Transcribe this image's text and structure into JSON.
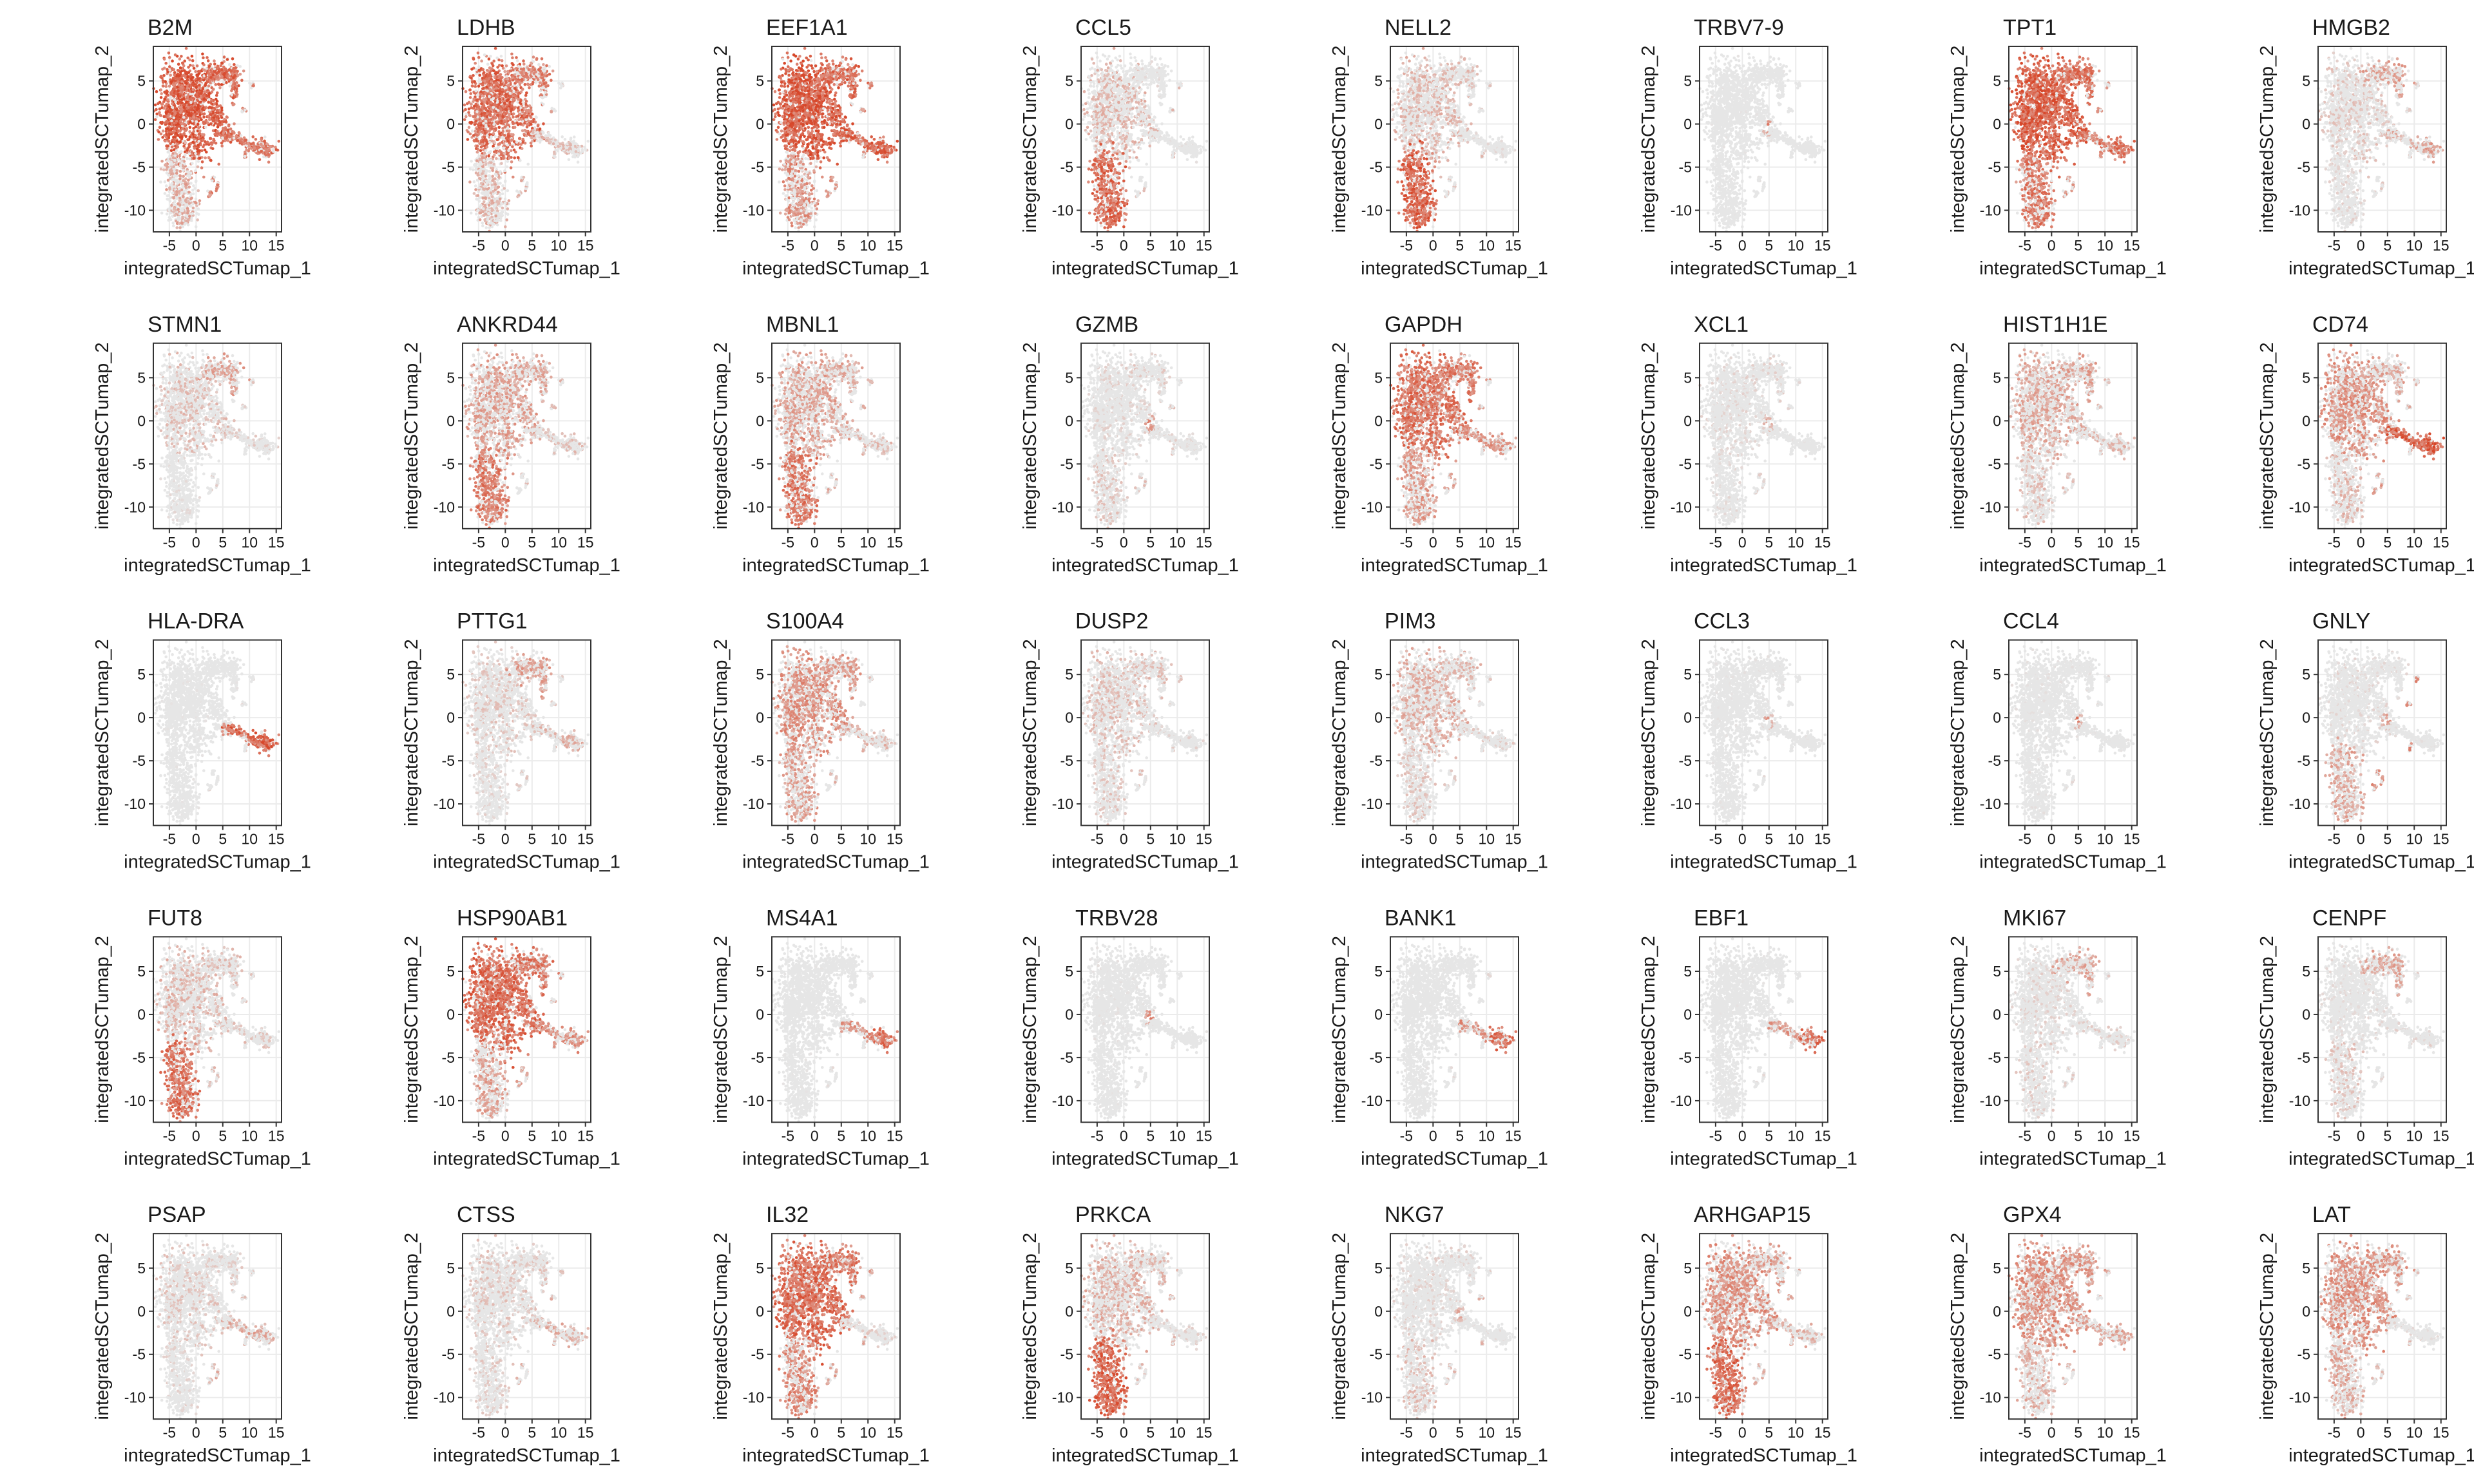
{
  "chart_data": {
    "type": "scatter",
    "layout": "small-multiples grid, 5 rows x 8 columns",
    "xlabel": "integratedSCTumap_1",
    "ylabel": "integratedSCTumap_2",
    "xlim": [
      -8,
      16
    ],
    "ylim": [
      -12.5,
      9
    ],
    "xticks": [
      -5,
      0,
      5,
      10,
      15
    ],
    "yticks": [
      -10,
      -5,
      0,
      5
    ],
    "xtick_labels": [
      "-5",
      "0",
      "5",
      "10",
      "15"
    ],
    "ytick_labels": [
      "-10",
      "-5",
      "0",
      "5"
    ],
    "grid": true,
    "legend": "none",
    "colors": {
      "low": "#e6e6e6",
      "high": "#d7472a",
      "frame": "#333333",
      "grid": "#ebebeb"
    },
    "note_regions": "expression intensity per region on a 0-1 scale",
    "panels": [
      {
        "gene": "B2M",
        "expression": {
          "core": 0.95,
          "upper_arm": 0.85,
          "lower_lobe": 0.45,
          "tail": 0.8,
          "tail_tip": 0.8,
          "islets": 0.7
        }
      },
      {
        "gene": "LDHB",
        "expression": {
          "core": 0.85,
          "upper_arm": 0.7,
          "lower_lobe": 0.4,
          "tail": 0.35,
          "tail_tip": 0.35,
          "islets": 0.4
        }
      },
      {
        "gene": "EEF1A1",
        "expression": {
          "core": 0.95,
          "upper_arm": 0.85,
          "lower_lobe": 0.6,
          "tail": 0.85,
          "tail_tip": 0.9,
          "islets": 0.6
        }
      },
      {
        "gene": "CCL5",
        "expression": {
          "core": 0.35,
          "upper_arm": 0.1,
          "lower_lobe": 0.85,
          "tail": 0.05,
          "tail_tip": 0.05,
          "islets": 0.3
        }
      },
      {
        "gene": "NELL2",
        "expression": {
          "core": 0.35,
          "upper_arm": 0.3,
          "lower_lobe": 0.9,
          "tail": 0.1,
          "tail_tip": 0.1,
          "islets": 0.3
        }
      },
      {
        "gene": "TRBV7-9",
        "expression": {
          "core": 0.03,
          "upper_arm": 0.02,
          "lower_lobe": 0.02,
          "tail": 0.02,
          "tail_tip": 0.02,
          "islets": 0.05,
          "hotspot": 0.95
        }
      },
      {
        "gene": "TPT1",
        "expression": {
          "core": 0.95,
          "upper_arm": 0.8,
          "lower_lobe": 0.75,
          "tail": 0.75,
          "tail_tip": 0.8,
          "islets": 0.6
        }
      },
      {
        "gene": "HMGB2",
        "expression": {
          "core": 0.25,
          "upper_arm": 0.5,
          "lower_lobe": 0.15,
          "tail": 0.4,
          "tail_tip": 0.5,
          "islets": 0.25
        }
      },
      {
        "gene": "STMN1",
        "expression": {
          "core": 0.3,
          "upper_arm": 0.5,
          "lower_lobe": 0.1,
          "tail": 0.2,
          "tail_tip": 0.2,
          "islets": 0.2
        }
      },
      {
        "gene": "ANKRD44",
        "expression": {
          "core": 0.5,
          "upper_arm": 0.45,
          "lower_lobe": 0.75,
          "tail": 0.3,
          "tail_tip": 0.3,
          "islets": 0.35
        }
      },
      {
        "gene": "MBNL1",
        "expression": {
          "core": 0.5,
          "upper_arm": 0.45,
          "lower_lobe": 0.75,
          "tail": 0.35,
          "tail_tip": 0.35,
          "islets": 0.4
        }
      },
      {
        "gene": "GZMB",
        "expression": {
          "core": 0.15,
          "upper_arm": 0.2,
          "lower_lobe": 0.25,
          "tail": 0.15,
          "tail_tip": 0.1,
          "islets": 0.25,
          "hotspot": 0.9
        }
      },
      {
        "gene": "GAPDH",
        "expression": {
          "core": 0.8,
          "upper_arm": 0.75,
          "lower_lobe": 0.55,
          "tail": 0.6,
          "tail_tip": 0.55,
          "islets": 0.5
        }
      },
      {
        "gene": "XCL1",
        "expression": {
          "core": 0.12,
          "upper_arm": 0.15,
          "lower_lobe": 0.1,
          "tail": 0.05,
          "tail_tip": 0.05,
          "islets": 0.15,
          "hotspot": 0.75
        }
      },
      {
        "gene": "HIST1H1E",
        "expression": {
          "core": 0.45,
          "upper_arm": 0.5,
          "lower_lobe": 0.3,
          "tail": 0.35,
          "tail_tip": 0.35,
          "islets": 0.3
        }
      },
      {
        "gene": "CD74",
        "expression": {
          "core": 0.6,
          "upper_arm": 0.45,
          "lower_lobe": 0.35,
          "tail": 0.9,
          "tail_tip": 0.95,
          "islets": 0.5
        }
      },
      {
        "gene": "HLA-DRA",
        "expression": {
          "core": 0.03,
          "upper_arm": 0.03,
          "lower_lobe": 0.03,
          "tail": 0.85,
          "tail_tip": 0.9,
          "islets": 0.15
        }
      },
      {
        "gene": "PTTG1",
        "expression": {
          "core": 0.25,
          "upper_arm": 0.5,
          "lower_lobe": 0.15,
          "tail": 0.35,
          "tail_tip": 0.4,
          "islets": 0.25
        }
      },
      {
        "gene": "S100A4",
        "expression": {
          "core": 0.6,
          "upper_arm": 0.55,
          "lower_lobe": 0.5,
          "tail": 0.4,
          "tail_tip": 0.35,
          "islets": 0.35
        }
      },
      {
        "gene": "DUSP2",
        "expression": {
          "core": 0.3,
          "upper_arm": 0.3,
          "lower_lobe": 0.25,
          "tail": 0.15,
          "tail_tip": 0.15,
          "islets": 0.25
        }
      },
      {
        "gene": "PIM3",
        "expression": {
          "core": 0.4,
          "upper_arm": 0.35,
          "lower_lobe": 0.25,
          "tail": 0.2,
          "tail_tip": 0.2,
          "islets": 0.25
        }
      },
      {
        "gene": "CCL3",
        "expression": {
          "core": 0.03,
          "upper_arm": 0.05,
          "lower_lobe": 0.03,
          "tail": 0.03,
          "tail_tip": 0.03,
          "islets": 0.1,
          "hotspot": 0.7
        }
      },
      {
        "gene": "CCL4",
        "expression": {
          "core": 0.05,
          "upper_arm": 0.05,
          "lower_lobe": 0.05,
          "tail": 0.03,
          "tail_tip": 0.03,
          "islets": 0.1,
          "hotspot": 0.8
        }
      },
      {
        "gene": "GNLY",
        "expression": {
          "core": 0.12,
          "upper_arm": 0.1,
          "lower_lobe": 0.45,
          "tail": 0.05,
          "tail_tip": 0.05,
          "islets": 0.6,
          "hotspot": 0.75
        }
      },
      {
        "gene": "FUT8",
        "expression": {
          "core": 0.35,
          "upper_arm": 0.3,
          "lower_lobe": 0.8,
          "tail": 0.25,
          "tail_tip": 0.25,
          "islets": 0.3
        }
      },
      {
        "gene": "HSP90AB1",
        "expression": {
          "core": 0.85,
          "upper_arm": 0.75,
          "lower_lobe": 0.5,
          "tail": 0.7,
          "tail_tip": 0.6,
          "islets": 0.5
        }
      },
      {
        "gene": "MS4A1",
        "expression": {
          "core": 0.02,
          "upper_arm": 0.02,
          "lower_lobe": 0.02,
          "tail": 0.6,
          "tail_tip": 0.8,
          "islets": 0.1
        }
      },
      {
        "gene": "TRBV28",
        "expression": {
          "core": 0.04,
          "upper_arm": 0.02,
          "lower_lobe": 0.03,
          "tail": 0.02,
          "tail_tip": 0.02,
          "islets": 0.05,
          "hotspot": 0.95
        }
      },
      {
        "gene": "BANK1",
        "expression": {
          "core": 0.02,
          "upper_arm": 0.02,
          "lower_lobe": 0.02,
          "tail": 0.6,
          "tail_tip": 0.8,
          "islets": 0.1
        }
      },
      {
        "gene": "EBF1",
        "expression": {
          "core": 0.02,
          "upper_arm": 0.02,
          "lower_lobe": 0.02,
          "tail": 0.55,
          "tail_tip": 0.8,
          "islets": 0.1
        }
      },
      {
        "gene": "MKI67",
        "expression": {
          "core": 0.15,
          "upper_arm": 0.45,
          "lower_lobe": 0.2,
          "tail": 0.2,
          "tail_tip": 0.2,
          "islets": 0.2
        }
      },
      {
        "gene": "CENPF",
        "expression": {
          "core": 0.1,
          "upper_arm": 0.45,
          "lower_lobe": 0.25,
          "tail": 0.15,
          "tail_tip": 0.15,
          "islets": 0.15
        }
      },
      {
        "gene": "PSAP",
        "expression": {
          "core": 0.25,
          "upper_arm": 0.2,
          "lower_lobe": 0.15,
          "tail": 0.45,
          "tail_tip": 0.45,
          "islets": 0.4
        }
      },
      {
        "gene": "CTSS",
        "expression": {
          "core": 0.25,
          "upper_arm": 0.25,
          "lower_lobe": 0.2,
          "tail": 0.4,
          "tail_tip": 0.4,
          "islets": 0.35
        }
      },
      {
        "gene": "IL32",
        "expression": {
          "core": 0.85,
          "upper_arm": 0.75,
          "lower_lobe": 0.65,
          "tail": 0.2,
          "tail_tip": 0.15,
          "islets": 0.5
        }
      },
      {
        "gene": "PRKCA",
        "expression": {
          "core": 0.4,
          "upper_arm": 0.35,
          "lower_lobe": 0.9,
          "tail": 0.15,
          "tail_tip": 0.15,
          "islets": 0.35
        }
      },
      {
        "gene": "NKG7",
        "expression": {
          "core": 0.15,
          "upper_arm": 0.15,
          "lower_lobe": 0.3,
          "tail": 0.08,
          "tail_tip": 0.08,
          "islets": 0.35,
          "hotspot": 0.65
        }
      },
      {
        "gene": "ARHGAP15",
        "expression": {
          "core": 0.6,
          "upper_arm": 0.5,
          "lower_lobe": 0.85,
          "tail": 0.4,
          "tail_tip": 0.4,
          "islets": 0.4
        }
      },
      {
        "gene": "GPX4",
        "expression": {
          "core": 0.6,
          "upper_arm": 0.55,
          "lower_lobe": 0.4,
          "tail": 0.5,
          "tail_tip": 0.5,
          "islets": 0.4
        }
      },
      {
        "gene": "LAT",
        "expression": {
          "core": 0.6,
          "upper_arm": 0.55,
          "lower_lobe": 0.45,
          "tail": 0.15,
          "tail_tip": 0.1,
          "islets": 0.35
        }
      }
    ]
  }
}
